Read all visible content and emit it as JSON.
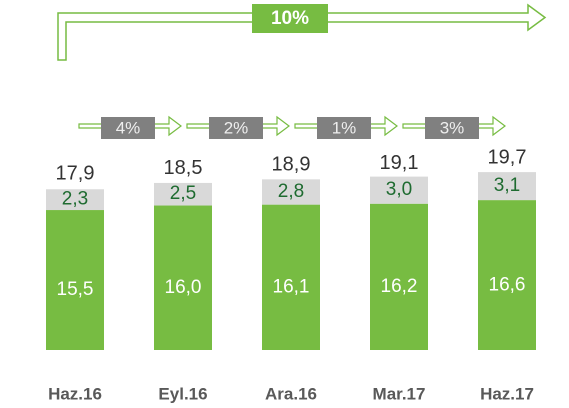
{
  "chart_data": {
    "type": "stacked_bar",
    "categories": [
      "Haz.16",
      "Eyl.16",
      "Ara.16",
      "Mar.17",
      "Haz.17"
    ],
    "series": [
      {
        "color": "#77bc42",
        "values": [
          15.5,
          16.0,
          16.1,
          16.2,
          16.6
        ],
        "value_labels": [
          "15,5",
          "16,0",
          "16,1",
          "16,2",
          "16,6"
        ]
      },
      {
        "color": "#d9d9d9",
        "values": [
          2.3,
          2.5,
          2.8,
          3.0,
          3.1
        ],
        "value_labels": [
          "2,3",
          "2,5",
          "2,8",
          "3,0",
          "3,1"
        ]
      }
    ],
    "totals": [
      17.9,
      18.5,
      18.9,
      19.1,
      19.7
    ],
    "total_labels": [
      "17,9",
      "18,5",
      "18,9",
      "19,1",
      "19,7"
    ],
    "growth_labels": [
      "4%",
      "2%",
      "1%",
      "3%"
    ],
    "total_growth_label": "10%",
    "ylim": [
      0,
      20
    ]
  }
}
